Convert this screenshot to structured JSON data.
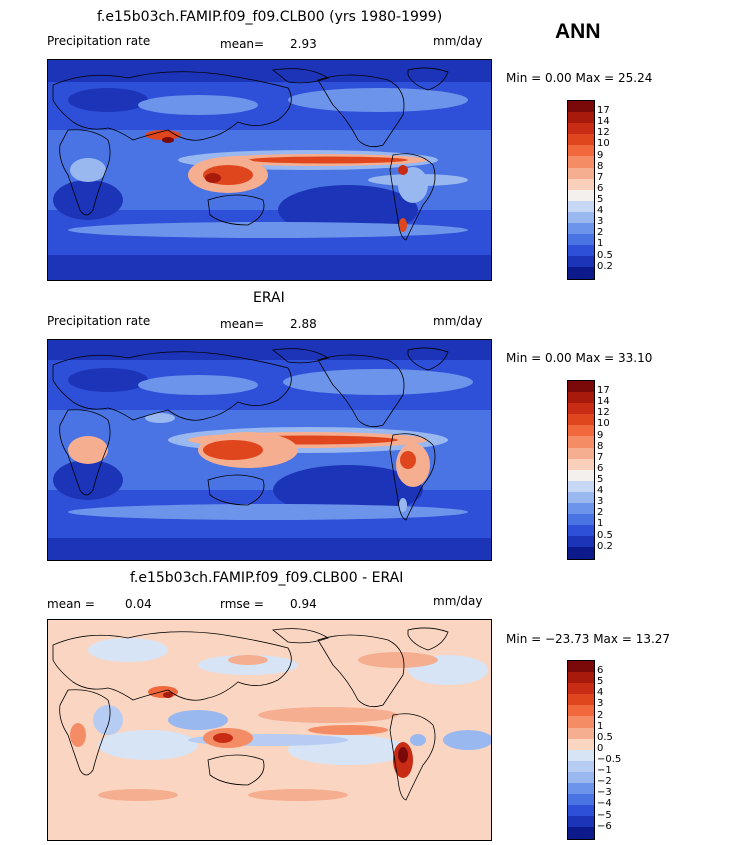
{
  "season": "ANN",
  "panels": [
    {
      "title": "f.e15b03ch.FAMIP.f09_f09.CLB00 (yrs 1980-1999)",
      "variable": "Precipitation rate",
      "stat_label": "mean=",
      "stat_value": "2.93",
      "units": "mm/day",
      "minmax": "Min =   0.00 Max =  25.24",
      "scale": "abs"
    },
    {
      "title": "ERAI",
      "variable": "Precipitation rate",
      "stat_label": "mean=",
      "stat_value": "2.88",
      "units": "mm/day",
      "minmax": "Min =   0.00 Max =  33.10",
      "scale": "abs"
    },
    {
      "title": "f.e15b03ch.FAMIP.f09_f09.CLB00 - ERAI",
      "mean_label": "mean =",
      "mean_value": "0.04",
      "rmse_label": "rmse =",
      "rmse_value": "0.94",
      "units": "mm/day",
      "minmax": "Min = −23.73 Max =  13.27",
      "scale": "diff"
    }
  ],
  "colorbars": {
    "abs": {
      "labels": [
        "17",
        "14",
        "12",
        "10",
        "9",
        "8",
        "7",
        "6",
        "5",
        "4",
        "3",
        "2",
        "1",
        "0.5",
        "0.2"
      ],
      "colors": [
        "#7a0a0a",
        "#a81a0c",
        "#c82c14",
        "#e0461e",
        "#f0683c",
        "#f48c66",
        "#f6ae90",
        "#fad0ba",
        "#f4f0ee",
        "#c6d8f4",
        "#9ab8f0",
        "#6c94ea",
        "#4a74e4",
        "#2e50d8",
        "#1c34b8",
        "#0c1a8c"
      ]
    },
    "diff": {
      "labels": [
        "6",
        "5",
        "4",
        "3",
        "2",
        "1",
        "0.5",
        "0",
        "−0.5",
        "−1",
        "−2",
        "−3",
        "−4",
        "−5",
        "−6"
      ],
      "colors": [
        "#7a0a0a",
        "#a81a0c",
        "#c82c14",
        "#e0461e",
        "#f0683c",
        "#f48c66",
        "#f6ae90",
        "#fad6c2",
        "#d6e4f6",
        "#b6ccf2",
        "#9ab8f0",
        "#6c94ea",
        "#4a74e4",
        "#2e50d8",
        "#1c34b8",
        "#0c1a8c"
      ]
    }
  }
}
